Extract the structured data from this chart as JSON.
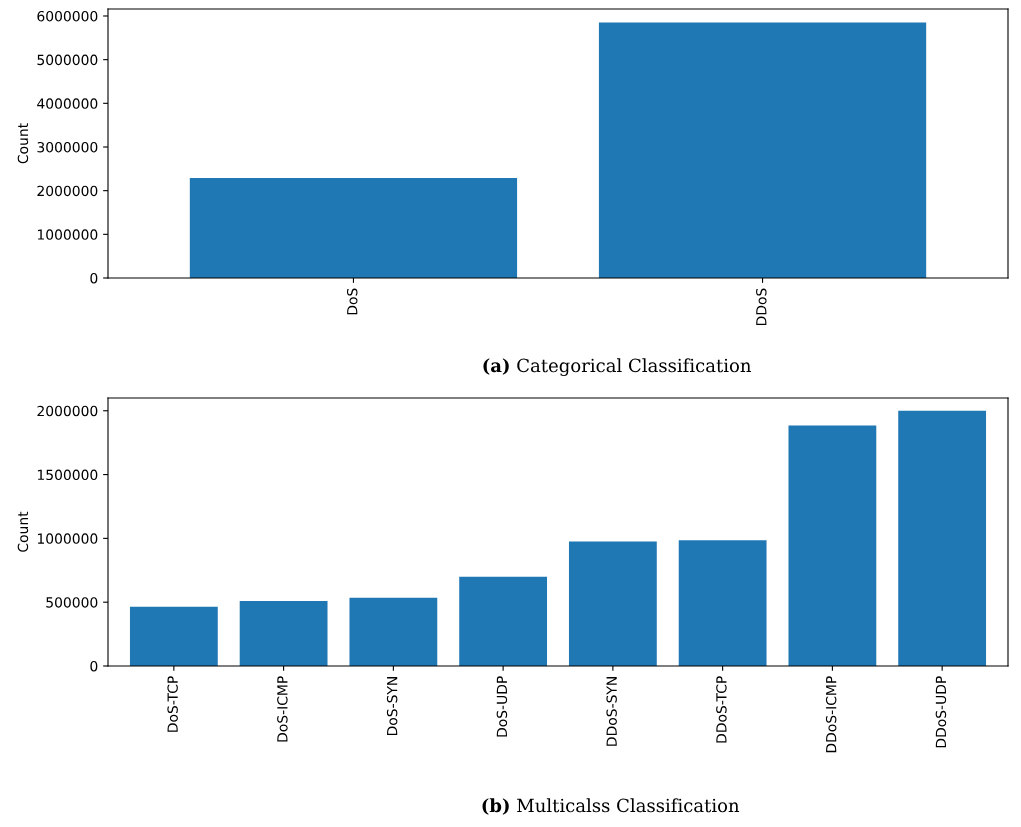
{
  "chart_data": [
    {
      "type": "bar",
      "ylabel": "Count",
      "categories": [
        "DoS",
        "DDoS"
      ],
      "values": [
        2290000,
        5850000
      ],
      "color": "#1f77b4",
      "ylim": [
        0,
        6160000
      ],
      "yticks": [
        0,
        1000000,
        2000000,
        3000000,
        4000000,
        5000000,
        6000000
      ],
      "grid": false,
      "annotations": [
        "(a) Categorical Classification"
      ]
    },
    {
      "type": "bar",
      "ylabel": "Count",
      "categories": [
        "DoS-TCP",
        "DoS-ICMP",
        "DoS-SYN",
        "DoS-UDP",
        "DDoS-SYN",
        "DDoS-TCP",
        "DDoS-ICMP",
        "DDoS-UDP"
      ],
      "values": [
        465000,
        510000,
        535000,
        700000,
        975000,
        985000,
        1885000,
        2000000
      ],
      "color": "#1f77b4",
      "ylim": [
        0,
        2100000
      ],
      "yticks": [
        0,
        500000,
        1000000,
        1500000,
        2000000
      ],
      "grid": false,
      "annotations": [
        "(b) Multicalss Classification"
      ]
    }
  ]
}
